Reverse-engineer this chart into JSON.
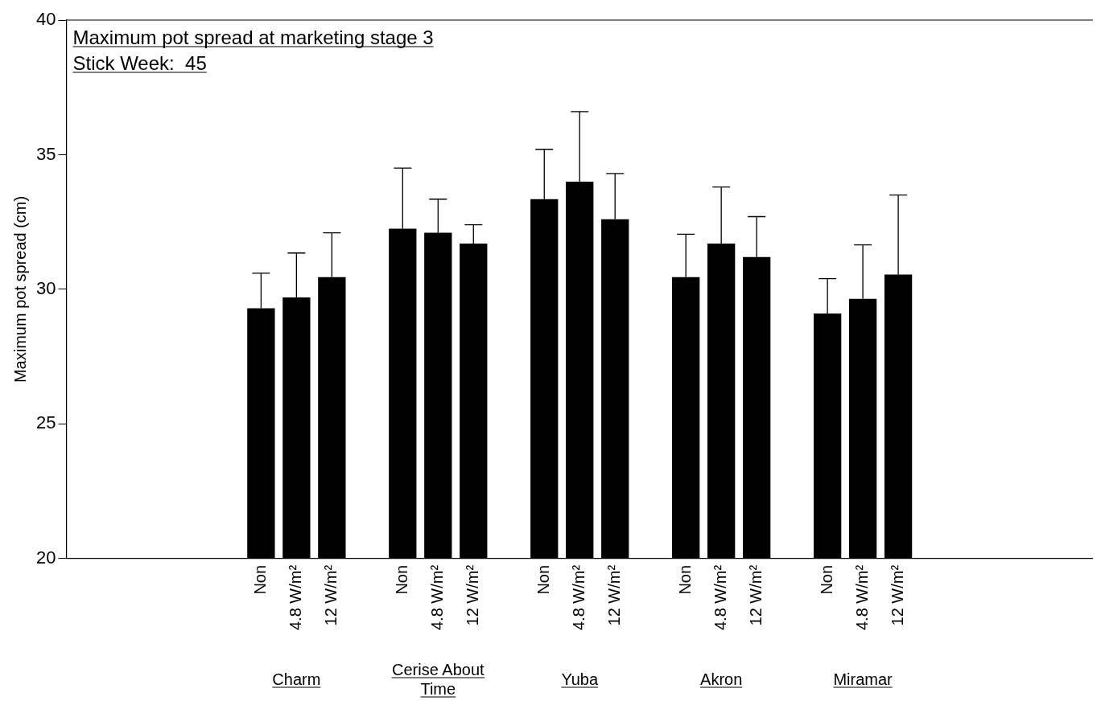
{
  "chart_data": {
    "type": "bar",
    "title": "Maximum pot spread at marketing stage 3",
    "subtitle": "Stick Week:  45",
    "ylabel": "Maximum pot spread (cm)",
    "categories": [
      null,
      null,
      null,
      null,
      null,
      "Non",
      "4.8 W/m²",
      "12 W/m²",
      null,
      "Non",
      "4.8 W/m²",
      "12 W/m²",
      null,
      "Non",
      "4.8 W/m²",
      "12 W/m²",
      null,
      "Non",
      "4.8 W/m²",
      "12 W/m²",
      null,
      "Non",
      "4.8 W/m²",
      "12 W/m²",
      null,
      null,
      null,
      null,
      null
    ],
    "values": [
      null,
      null,
      null,
      null,
      null,
      29.3,
      29.7,
      30.45,
      null,
      32.25,
      32.1,
      31.7,
      null,
      33.35,
      34.0,
      32.6,
      null,
      30.45,
      31.7,
      31.2,
      null,
      29.1,
      29.65,
      30.55,
      null,
      null,
      null,
      null,
      null
    ],
    "errors": [
      null,
      null,
      null,
      null,
      null,
      [
        29.3,
        30.6
      ],
      [
        29.7,
        31.35
      ],
      [
        30.45,
        32.1
      ],
      null,
      [
        32.25,
        34.5
      ],
      [
        32.1,
        33.35
      ],
      [
        31.7,
        32.4
      ],
      null,
      [
        33.35,
        35.2
      ],
      [
        34.0,
        36.6
      ],
      [
        32.6,
        34.3
      ],
      null,
      [
        30.45,
        32.05
      ],
      [
        31.7,
        33.8
      ],
      [
        31.2,
        32.7
      ],
      null,
      [
        29.1,
        30.4
      ],
      [
        29.65,
        31.65
      ],
      [
        30.55,
        33.5
      ],
      null,
      null,
      null,
      null,
      null
    ],
    "color": "#000000",
    "ylim": [
      20,
      40
    ],
    "yticks": [
      20,
      25,
      30,
      35,
      40
    ],
    "grid": false,
    "legend": false,
    "annotations": [
      "Charm",
      "Cerise About Time",
      "Yuba",
      "Akron",
      "Miramar"
    ]
  }
}
